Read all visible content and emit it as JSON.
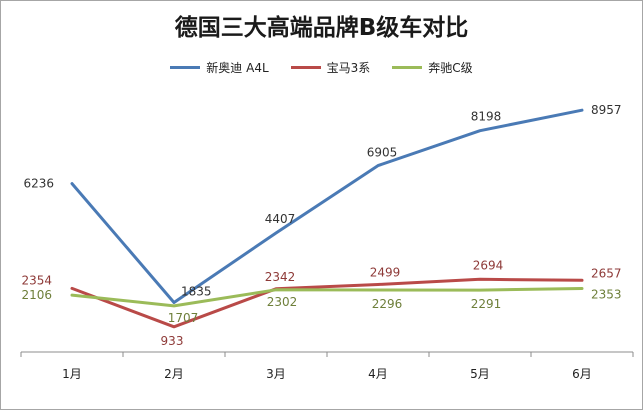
{
  "chart_data": {
    "type": "line",
    "title": "德国三大高端品牌B级车对比",
    "categories": [
      "1月",
      "2月",
      "3月",
      "4月",
      "5月",
      "6月"
    ],
    "series": [
      {
        "name": "新奥迪 A4L",
        "color": "#4a7ab5",
        "values": [
          6236,
          1835,
          4407,
          6905,
          8198,
          8957
        ]
      },
      {
        "name": "宝马3系",
        "color": "#b94a48",
        "values": [
          2354,
          933,
          2342,
          2499,
          2694,
          2657
        ]
      },
      {
        "name": "奔驰C级",
        "color": "#9bbb59",
        "values": [
          2106,
          1707,
          2302,
          2296,
          2291,
          2353
        ]
      }
    ],
    "ylim": [
      0,
      10000
    ],
    "grid": false,
    "legend_position": "top"
  }
}
